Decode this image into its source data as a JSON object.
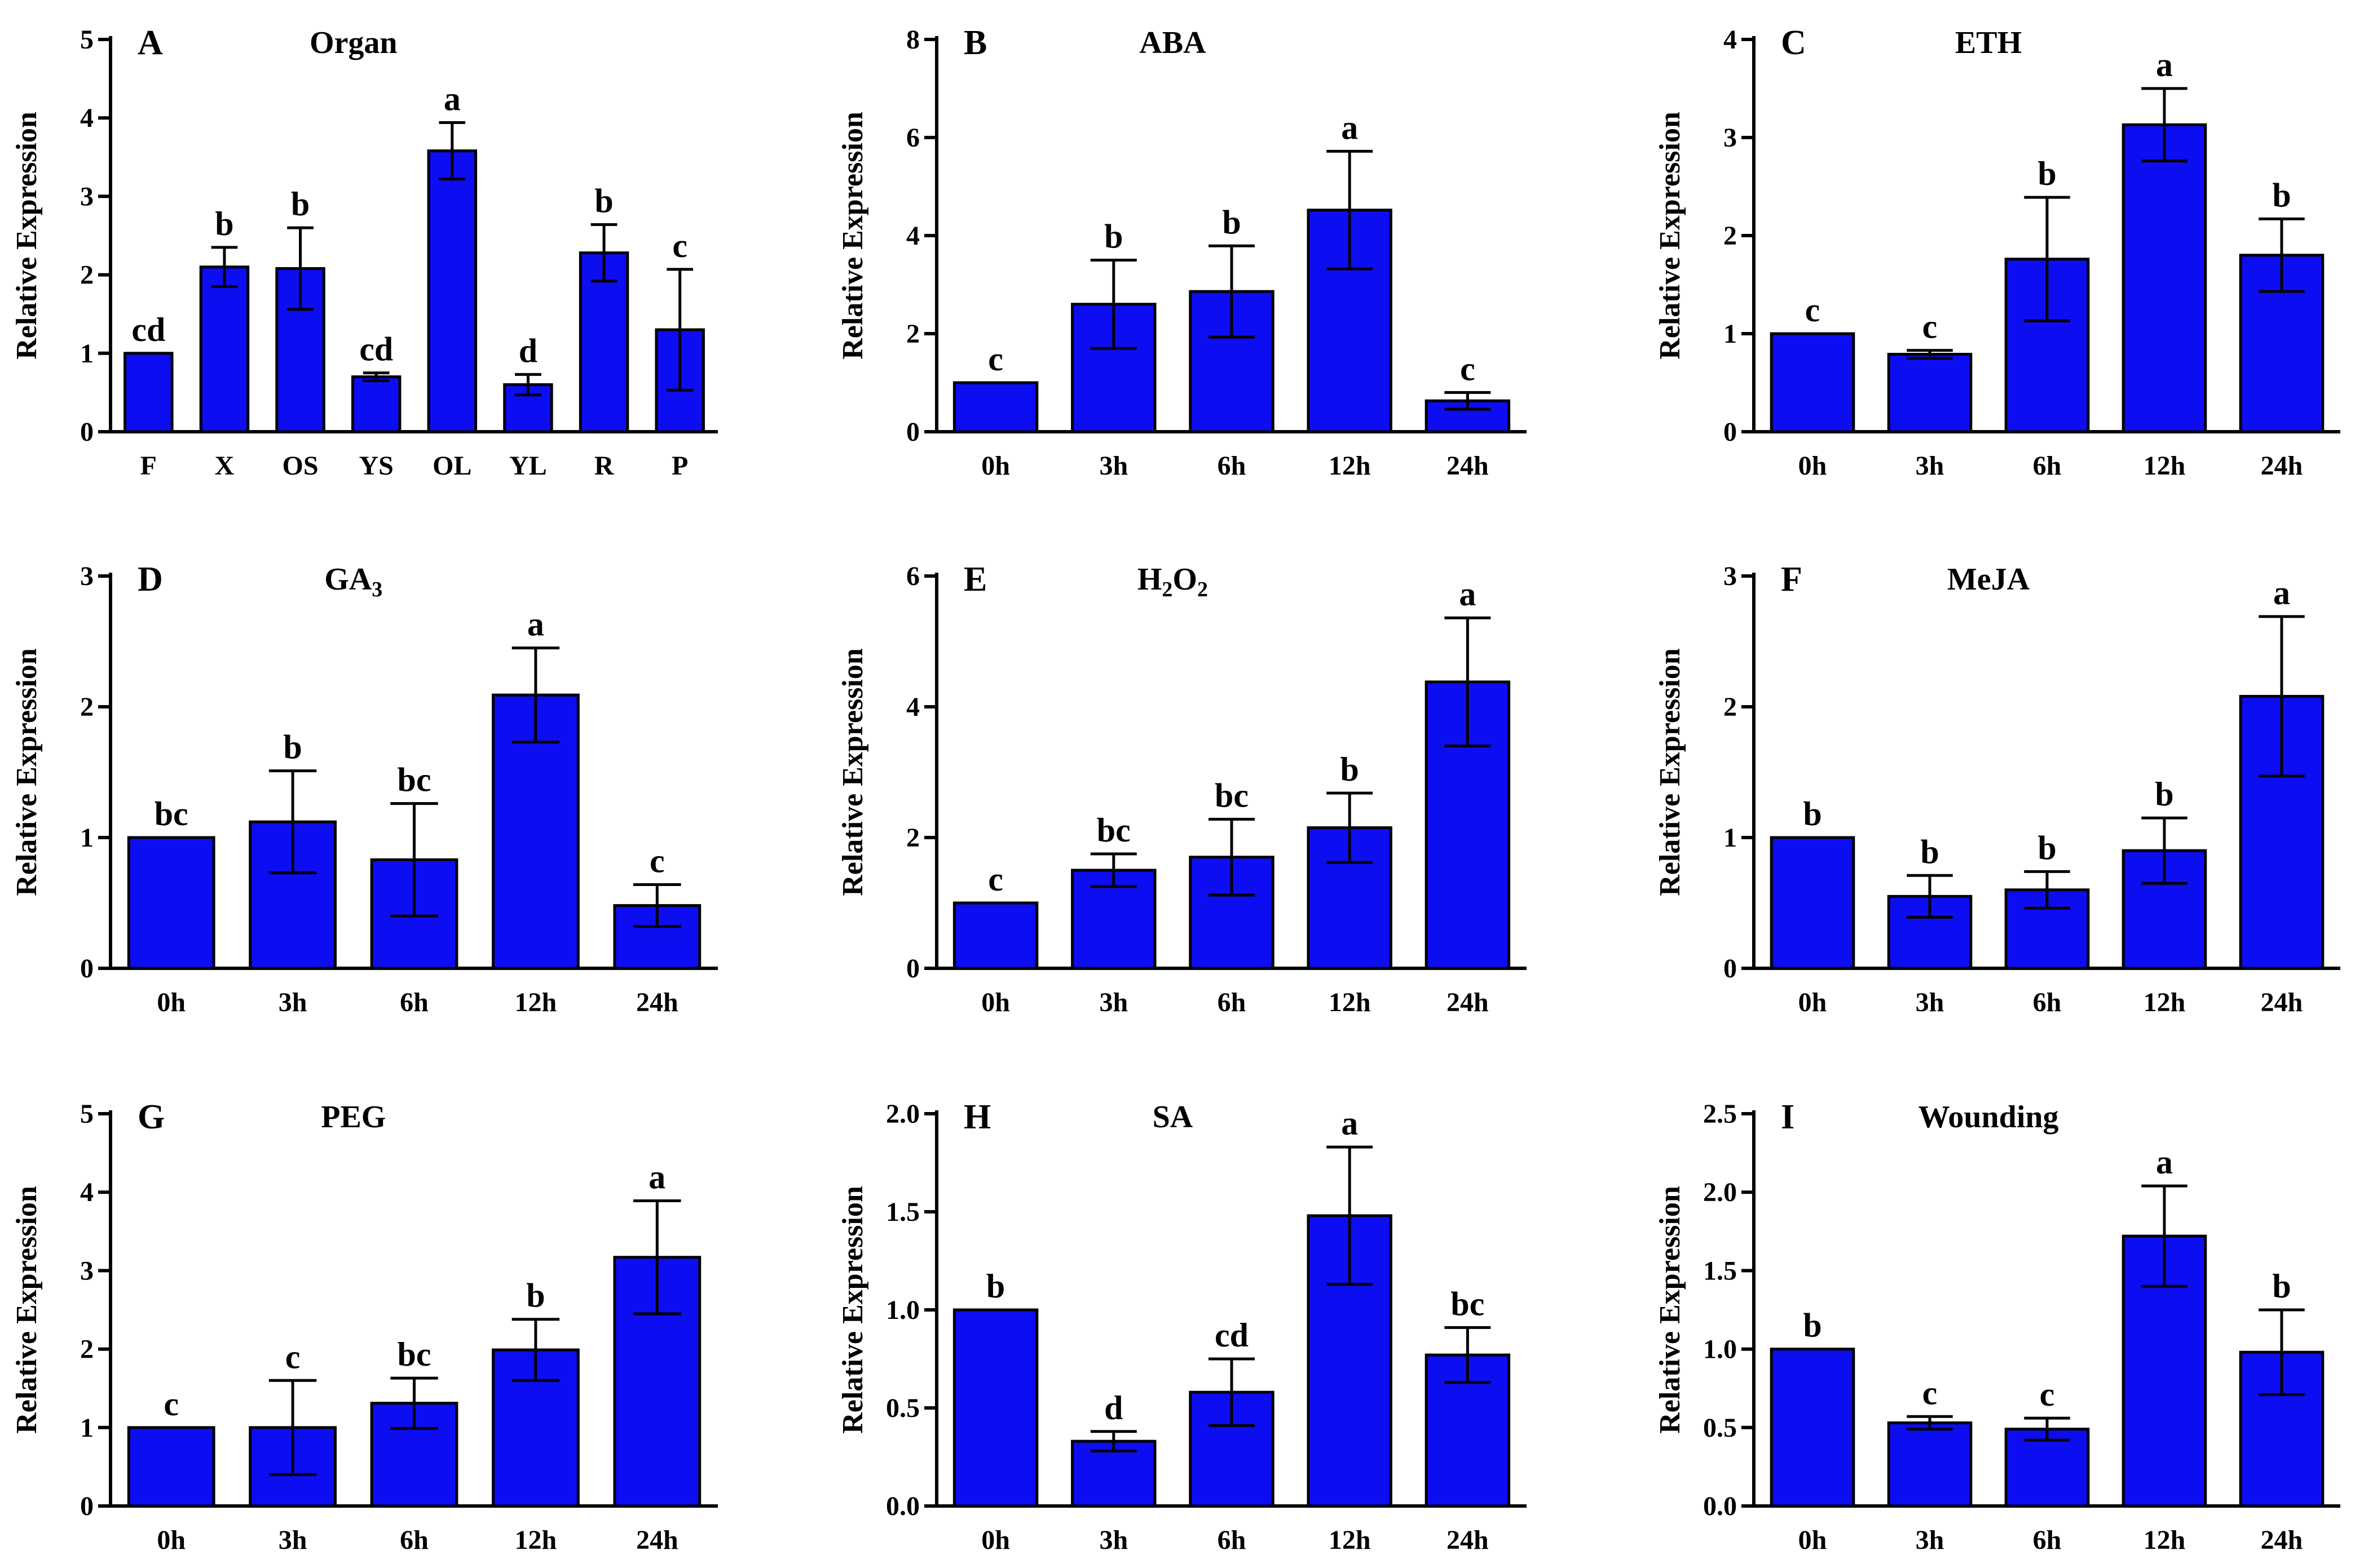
{
  "chart_data": [
    {
      "panel": "A",
      "title": "Organ",
      "type": "bar",
      "ylabel": "Relative Expression",
      "ylim": [
        0,
        5
      ],
      "yticks": [
        "0",
        "1",
        "2",
        "3",
        "4",
        "5"
      ],
      "categories": [
        "F",
        "X",
        "OS",
        "YS",
        "OL",
        "YL",
        "R",
        "P"
      ],
      "values": [
        1.0,
        2.1,
        2.08,
        0.7,
        3.58,
        0.6,
        2.28,
        1.3
      ],
      "errors": [
        0,
        0.25,
        0.52,
        0.05,
        0.36,
        0.13,
        0.36,
        0.77
      ],
      "labels": [
        "cd",
        "b",
        "b",
        "cd",
        "a",
        "d",
        "b",
        "c"
      ]
    },
    {
      "panel": "B",
      "title": "ABA",
      "type": "bar",
      "ylabel": "Relative Expression",
      "ylim": [
        0,
        8
      ],
      "yticks": [
        "0",
        "2",
        "4",
        "6",
        "8"
      ],
      "categories": [
        "0h",
        "3h",
        "6h",
        "12h",
        "24h"
      ],
      "values": [
        1.0,
        2.6,
        2.86,
        4.52,
        0.63
      ],
      "errors": [
        0,
        0.9,
        0.93,
        1.2,
        0.17
      ],
      "labels": [
        "c",
        "b",
        "b",
        "a",
        "c"
      ]
    },
    {
      "panel": "C",
      "title": "ETH",
      "type": "bar",
      "ylabel": "Relative Expression",
      "ylim": [
        0,
        4
      ],
      "yticks": [
        "0",
        "1",
        "2",
        "3",
        "4"
      ],
      "categories": [
        "0h",
        "3h",
        "6h",
        "12h",
        "24h"
      ],
      "values": [
        1.0,
        0.79,
        1.76,
        3.13,
        1.8
      ],
      "errors": [
        0,
        0.04,
        0.63,
        0.37,
        0.37
      ],
      "labels": [
        "c",
        "c",
        "b",
        "a",
        "b"
      ]
    },
    {
      "panel": "D",
      "title": "GA",
      "title_sub": "3",
      "type": "bar",
      "ylabel": "Relative Expression",
      "ylim": [
        0,
        3
      ],
      "yticks": [
        "0",
        "1",
        "2",
        "3"
      ],
      "categories": [
        "0h",
        "3h",
        "6h",
        "12h",
        "24h"
      ],
      "values": [
        1.0,
        1.12,
        0.83,
        2.09,
        0.48
      ],
      "errors": [
        0,
        0.39,
        0.43,
        0.36,
        0.16
      ],
      "labels": [
        "bc",
        "b",
        "bc",
        "a",
        "c"
      ]
    },
    {
      "panel": "E",
      "title": "H2O2",
      "title_parts": [
        "H",
        "2",
        "O",
        "2"
      ],
      "type": "bar",
      "ylabel": "Relative Expression",
      "ylim": [
        0,
        6
      ],
      "yticks": [
        "0",
        "2",
        "4",
        "6"
      ],
      "categories": [
        "0h",
        "3h",
        "6h",
        "12h",
        "24h"
      ],
      "values": [
        1.0,
        1.5,
        1.7,
        2.15,
        4.38
      ],
      "errors": [
        0,
        0.25,
        0.58,
        0.53,
        0.98
      ],
      "labels": [
        "c",
        "bc",
        "bc",
        "b",
        "a"
      ]
    },
    {
      "panel": "F",
      "title": "MeJA",
      "type": "bar",
      "ylabel": "Relative Expression",
      "ylim": [
        0,
        3
      ],
      "yticks": [
        "0",
        "1",
        "2",
        "3"
      ],
      "categories": [
        "0h",
        "3h",
        "6h",
        "12h",
        "24h"
      ],
      "values": [
        1.0,
        0.55,
        0.6,
        0.9,
        2.08
      ],
      "errors": [
        0,
        0.16,
        0.14,
        0.25,
        0.61
      ],
      "labels": [
        "b",
        "b",
        "b",
        "b",
        "a"
      ]
    },
    {
      "panel": "G",
      "title": "PEG",
      "type": "bar",
      "ylabel": "Relative Expression",
      "ylim": [
        0,
        5
      ],
      "yticks": [
        "0",
        "1",
        "2",
        "3",
        "4",
        "5"
      ],
      "categories": [
        "0h",
        "3h",
        "6h",
        "12h",
        "24h"
      ],
      "values": [
        1.0,
        1.0,
        1.31,
        1.99,
        3.17
      ],
      "errors": [
        0,
        0.6,
        0.32,
        0.39,
        0.72
      ],
      "labels": [
        "c",
        "c",
        "bc",
        "b",
        "a"
      ]
    },
    {
      "panel": "H",
      "title": "SA",
      "type": "bar",
      "ylabel": "Relative Expression",
      "ylim": [
        0,
        2
      ],
      "yticks": [
        "0.0",
        "0.5",
        "1.0",
        "1.5",
        "2.0"
      ],
      "categories": [
        "0h",
        "3h",
        "6h",
        "12h",
        "24h"
      ],
      "values": [
        1.0,
        0.33,
        0.58,
        1.48,
        0.77
      ],
      "errors": [
        0,
        0.05,
        0.17,
        0.35,
        0.14
      ],
      "labels": [
        "b",
        "d",
        "cd",
        "a",
        "bc"
      ]
    },
    {
      "panel": "I",
      "title": "Wounding",
      "type": "bar",
      "ylabel": "Relative Expression",
      "ylim": [
        0,
        2.5
      ],
      "yticks": [
        "0.0",
        "0.5",
        "1.0",
        "1.5",
        "2.0",
        "2.5"
      ],
      "categories": [
        "0h",
        "3h",
        "6h",
        "12h",
        "24h"
      ],
      "values": [
        1.0,
        0.53,
        0.49,
        1.72,
        0.98
      ],
      "errors": [
        0,
        0.04,
        0.07,
        0.32,
        0.27
      ],
      "labels": [
        "b",
        "c",
        "c",
        "a",
        "b"
      ]
    }
  ]
}
